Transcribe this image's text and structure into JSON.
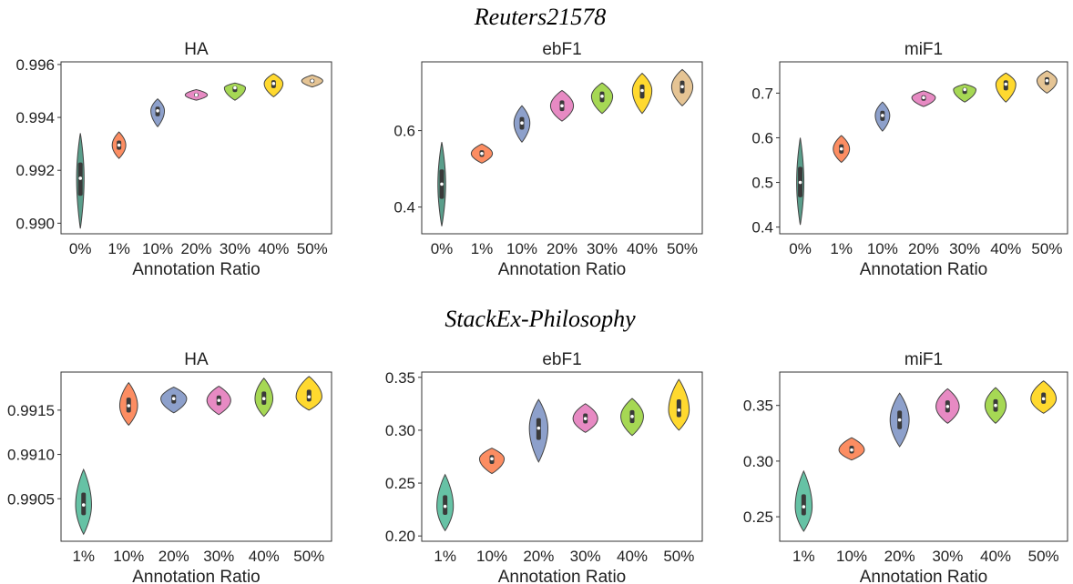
{
  "group_titles": [
    "Reuters21578",
    "StackEx-Philosophy"
  ],
  "xlabel": "Annotation Ratio",
  "colors": {
    "0%": "#5a9e8b",
    "1%": "#fc8d62",
    "10%": "#8da0cb",
    "20%": "#e78ac3",
    "30%": "#a6d854",
    "40%": "#ffd92f",
    "50%": "#e5c494",
    "teal": "#66c2a5"
  },
  "chart_data": [
    {
      "type": "violin",
      "group": "Reuters21578",
      "title": "HA",
      "xlabel": "Annotation Ratio",
      "categories": [
        "0%",
        "1%",
        "10%",
        "20%",
        "30%",
        "40%",
        "50%"
      ],
      "color_keys": [
        "0%",
        "1%",
        "10%",
        "20%",
        "30%",
        "40%",
        "50%"
      ],
      "medians": [
        0.9917,
        0.99295,
        0.99425,
        0.99485,
        0.99512,
        0.99528,
        0.99538
      ],
      "mins": [
        0.9898,
        0.99245,
        0.99365,
        0.99465,
        0.99465,
        0.99478,
        0.99515
      ],
      "maxs": [
        0.9934,
        0.99345,
        0.9947,
        0.99505,
        0.9953,
        0.99565,
        0.9956
      ],
      "widths": [
        0.22,
        0.4,
        0.4,
        0.65,
        0.62,
        0.55,
        0.62
      ],
      "ylim": [
        0.9896,
        0.9961
      ],
      "yticks": [
        0.99,
        0.992,
        0.994,
        0.996
      ],
      "ytick_labels": [
        "0.990",
        "0.992",
        "0.994",
        "0.996"
      ]
    },
    {
      "type": "violin",
      "group": "Reuters21578",
      "title": "ebF1",
      "xlabel": "Annotation Ratio",
      "categories": [
        "0%",
        "1%",
        "10%",
        "20%",
        "30%",
        "40%",
        "50%"
      ],
      "color_keys": [
        "0%",
        "1%",
        "10%",
        "20%",
        "30%",
        "40%",
        "50%"
      ],
      "medians": [
        0.46,
        0.54,
        0.62,
        0.665,
        0.69,
        0.705,
        0.715
      ],
      "mins": [
        0.35,
        0.515,
        0.57,
        0.625,
        0.645,
        0.645,
        0.665
      ],
      "maxs": [
        0.57,
        0.565,
        0.665,
        0.705,
        0.725,
        0.75,
        0.76
      ],
      "widths": [
        0.22,
        0.6,
        0.45,
        0.65,
        0.6,
        0.55,
        0.6
      ],
      "ylim": [
        0.33,
        0.78
      ],
      "yticks": [
        0.4,
        0.6
      ],
      "ytick_labels": [
        "0.4",
        "0.6"
      ]
    },
    {
      "type": "violin",
      "group": "Reuters21578",
      "title": "miF1",
      "xlabel": "Annotation Ratio",
      "categories": [
        "0%",
        "1%",
        "10%",
        "20%",
        "30%",
        "40%",
        "50%"
      ],
      "color_keys": [
        "0%",
        "1%",
        "10%",
        "20%",
        "30%",
        "40%",
        "50%"
      ],
      "medians": [
        0.5,
        0.575,
        0.65,
        0.69,
        0.708,
        0.72,
        0.728
      ],
      "mins": [
        0.405,
        0.545,
        0.615,
        0.67,
        0.68,
        0.68,
        0.7
      ],
      "maxs": [
        0.6,
        0.605,
        0.68,
        0.705,
        0.72,
        0.745,
        0.75
      ],
      "widths": [
        0.2,
        0.45,
        0.4,
        0.65,
        0.62,
        0.55,
        0.55
      ],
      "ylim": [
        0.385,
        0.77
      ],
      "yticks": [
        0.4,
        0.5,
        0.6,
        0.7
      ],
      "ytick_labels": [
        "0.4",
        "0.5",
        "0.6",
        "0.7"
      ]
    },
    {
      "type": "violin",
      "group": "StackEx-Philosophy",
      "title": "HA",
      "xlabel": "Annotation Ratio",
      "categories": [
        "1%",
        "10%",
        "20%",
        "30%",
        "40%",
        "50%"
      ],
      "color_keys": [
        "teal",
        "1%",
        "10%",
        "20%",
        "30%",
        "40%"
      ],
      "medians": [
        0.99043,
        0.99155,
        0.99163,
        0.99161,
        0.99163,
        0.99165
      ],
      "mins": [
        0.9901,
        0.99133,
        0.99147,
        0.99145,
        0.99143,
        0.9915
      ],
      "maxs": [
        0.99083,
        0.99181,
        0.99176,
        0.99177,
        0.99186,
        0.99188
      ],
      "widths": [
        0.4,
        0.45,
        0.65,
        0.6,
        0.45,
        0.65
      ],
      "ylim": [
        0.99002,
        0.99193
      ],
      "yticks": [
        0.9905,
        0.991,
        0.9915
      ],
      "ytick_labels": [
        "0.9905",
        "0.9910",
        "0.9915"
      ]
    },
    {
      "type": "violin",
      "group": "StackEx-Philosophy",
      "title": "ebF1",
      "xlabel": "Annotation Ratio",
      "categories": [
        "1%",
        "10%",
        "20%",
        "30%",
        "40%",
        "50%"
      ],
      "color_keys": [
        "teal",
        "1%",
        "10%",
        "20%",
        "30%",
        "40%"
      ],
      "medians": [
        0.228,
        0.273,
        0.302,
        0.311,
        0.313,
        0.319
      ],
      "mins": [
        0.205,
        0.259,
        0.27,
        0.298,
        0.295,
        0.3
      ],
      "maxs": [
        0.258,
        0.283,
        0.329,
        0.325,
        0.33,
        0.348
      ],
      "widths": [
        0.4,
        0.6,
        0.45,
        0.6,
        0.55,
        0.5
      ],
      "ylim": [
        0.195,
        0.355
      ],
      "yticks": [
        0.2,
        0.25,
        0.3,
        0.35
      ],
      "ytick_labels": [
        "0.20",
        "0.25",
        "0.30",
        "0.35"
      ]
    },
    {
      "type": "violin",
      "group": "StackEx-Philosophy",
      "title": "miF1",
      "xlabel": "Annotation Ratio",
      "categories": [
        "1%",
        "10%",
        "20%",
        "30%",
        "40%",
        "50%"
      ],
      "color_keys": [
        "teal",
        "1%",
        "10%",
        "20%",
        "30%",
        "40%"
      ],
      "medians": [
        0.259,
        0.31,
        0.337,
        0.349,
        0.35,
        0.356
      ],
      "mins": [
        0.237,
        0.301,
        0.313,
        0.334,
        0.334,
        0.343
      ],
      "maxs": [
        0.291,
        0.321,
        0.361,
        0.365,
        0.366,
        0.372
      ],
      "widths": [
        0.4,
        0.6,
        0.45,
        0.55,
        0.5,
        0.6
      ],
      "ylim": [
        0.228,
        0.38
      ],
      "yticks": [
        0.25,
        0.3,
        0.35
      ],
      "ytick_labels": [
        "0.25",
        "0.30",
        "0.35"
      ]
    }
  ]
}
